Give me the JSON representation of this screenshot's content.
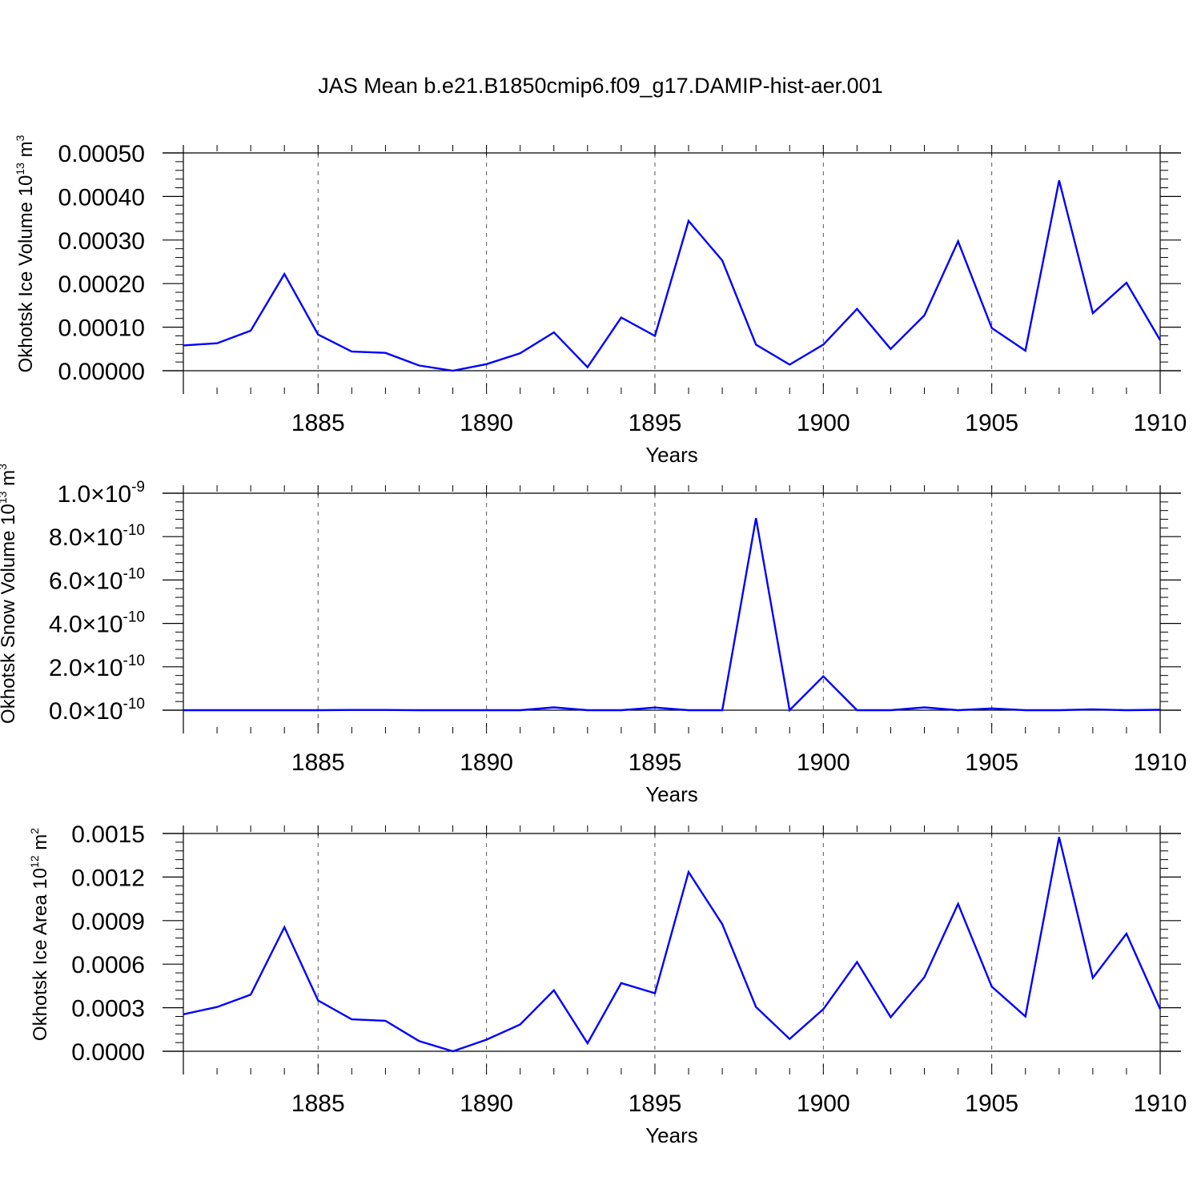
{
  "title": "JAS Mean b.e21.B1850cmip6.f09_g17.DAMIP-hist-aer.001",
  "line_color": "#0000ff",
  "chart_data": [
    {
      "type": "line",
      "xlabel": "Years",
      "ylabel": "Okhotsk Ice Volume 10",
      "ylabel_exp": "13",
      "ylabel_unit": " m",
      "ylabel_unit_exp": "3",
      "xlim": [
        1881,
        1910
      ],
      "ylim": [
        0,
        0.0005
      ],
      "xticks": [
        1885,
        1890,
        1895,
        1900,
        1905,
        1910
      ],
      "yticks": [
        0,
        0.0001,
        0.0002,
        0.0003,
        0.0004,
        0.0005
      ],
      "ytick_labels": [
        "0.00000",
        "0.00010",
        "0.00020",
        "0.00030",
        "0.00040",
        "0.00050"
      ],
      "grid": "x-dashed",
      "x": [
        1881,
        1882,
        1883,
        1884,
        1885,
        1886,
        1887,
        1888,
        1889,
        1890,
        1891,
        1892,
        1893,
        1894,
        1895,
        1896,
        1897,
        1898,
        1899,
        1900,
        1901,
        1902,
        1903,
        1904,
        1905,
        1906,
        1907,
        1908,
        1909,
        1910
      ],
      "y": [
        5.8e-05,
        6.3e-05,
        9.2e-05,
        0.000222,
        8.3e-05,
        4.4e-05,
        4.1e-05,
        1.2e-05,
        0.0,
        1.5e-05,
        4e-05,
        8.8e-05,
        8e-06,
        0.000122,
        8e-05,
        0.000344,
        0.000253,
        6e-05,
        1.4e-05,
        6e-05,
        0.000142,
        5e-05,
        0.000127,
        0.000297,
        9.8e-05,
        4.6e-05,
        0.000437,
        0.000132,
        0.000202,
        7e-05
      ]
    },
    {
      "type": "line",
      "xlabel": "Years",
      "ylabel": "Okhotsk Snow Volume 10",
      "ylabel_exp": "13",
      "ylabel_unit": " m",
      "ylabel_unit_exp": "3",
      "xlim": [
        1881,
        1910
      ],
      "ylim": [
        0,
        1e-09
      ],
      "xticks": [
        1885,
        1890,
        1895,
        1900,
        1905,
        1910
      ],
      "yticks": [
        0,
        2e-10,
        4e-10,
        6e-10,
        8e-10,
        1e-09
      ],
      "ytick_labels": [
        {
          "mant": "0.0",
          "exp": "-10"
        },
        {
          "mant": "2.0",
          "exp": "-10"
        },
        {
          "mant": "4.0",
          "exp": "-10"
        },
        {
          "mant": "6.0",
          "exp": "-10"
        },
        {
          "mant": "8.0",
          "exp": "-10"
        },
        {
          "mant": "1.0",
          "exp": "-9"
        }
      ],
      "grid": "x-dashed",
      "x": [
        1881,
        1882,
        1883,
        1884,
        1885,
        1886,
        1887,
        1888,
        1889,
        1890,
        1891,
        1892,
        1893,
        1894,
        1895,
        1896,
        1897,
        1898,
        1899,
        1900,
        1901,
        1902,
        1903,
        1904,
        1905,
        1906,
        1907,
        1908,
        1909,
        1910
      ],
      "y": [
        0.0,
        0.0,
        0.0,
        0.0,
        0.0,
        1e-12,
        1e-12,
        0.0,
        0.0,
        0.0,
        0.0,
        1.3e-11,
        0.0,
        0.0,
        1.2e-11,
        0.0,
        0.0,
        8.85e-10,
        0.0,
        1.56e-10,
        0.0,
        0.0,
        1.3e-11,
        0.0,
        8e-12,
        0.0,
        0.0,
        4e-12,
        0.0,
        2e-12
      ]
    },
    {
      "type": "line",
      "xlabel": "Years",
      "ylabel": "Okhotsk Ice Area 10",
      "ylabel_exp": "12",
      "ylabel_unit": " m",
      "ylabel_unit_exp": "2",
      "xlim": [
        1881,
        1910
      ],
      "ylim": [
        0,
        0.0015
      ],
      "xticks": [
        1885,
        1890,
        1895,
        1900,
        1905,
        1910
      ],
      "yticks": [
        0,
        0.0003,
        0.0006,
        0.0009,
        0.0012,
        0.0015
      ],
      "ytick_labels": [
        "0.0000",
        "0.0003",
        "0.0006",
        "0.0009",
        "0.0012",
        "0.0015"
      ],
      "grid": "x-dashed",
      "x": [
        1881,
        1882,
        1883,
        1884,
        1885,
        1886,
        1887,
        1888,
        1889,
        1890,
        1891,
        1892,
        1893,
        1894,
        1895,
        1896,
        1897,
        1898,
        1899,
        1900,
        1901,
        1902,
        1903,
        1904,
        1905,
        1906,
        1907,
        1908,
        1909,
        1910
      ],
      "y": [
        0.000255,
        0.000305,
        0.00039,
        0.000855,
        0.00035,
        0.00022,
        0.00021,
        7e-05,
        0.0,
        8e-05,
        0.000185,
        0.00042,
        5.5e-05,
        0.00047,
        0.0004,
        0.001235,
        0.000875,
        0.000305,
        8.5e-05,
        0.00029,
        0.000615,
        0.000235,
        0.00051,
        0.001015,
        0.000445,
        0.00024,
        0.001475,
        0.000505,
        0.00081,
        0.00029
      ]
    }
  ]
}
